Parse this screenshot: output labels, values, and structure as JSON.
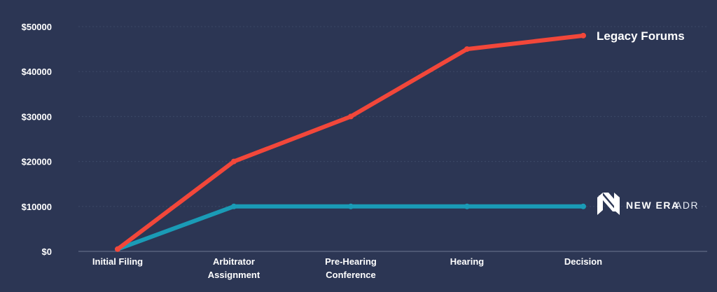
{
  "colors": {
    "background": "#2c3654",
    "legacy": "#f2473a",
    "new_era": "#1a9bb6"
  },
  "brand": {
    "bold": "NEW ERA",
    "light": "ADR",
    "icon": "new-era-n-logo-icon"
  },
  "chart_data": {
    "type": "line",
    "categories": [
      [
        "Initial Filing"
      ],
      [
        "Arbitrator",
        "Assignment"
      ],
      [
        "Pre-Hearing",
        "Conference"
      ],
      [
        "Hearing"
      ],
      [
        "Decision"
      ]
    ],
    "yticks": [
      "$0",
      "$10000",
      "$20000",
      "$30000",
      "$40000",
      "$50000"
    ],
    "ylim": [
      0,
      50000
    ],
    "grid": true,
    "series": [
      {
        "name": "Legacy Forums",
        "color": "#f2473a",
        "values": [
          500,
          20000,
          30000,
          45000,
          48000
        ]
      },
      {
        "name": "",
        "color": "#1a9bb6",
        "values": [
          500,
          10000,
          10000,
          10000,
          10000
        ]
      }
    ]
  }
}
